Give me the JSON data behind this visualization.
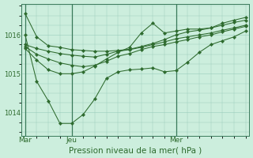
{
  "background_color": "#cceedd",
  "grid_color": "#99ccbb",
  "line_color": "#2d6a2d",
  "marker_color": "#2d6a2d",
  "xlabel": "Pression niveau de la mer( hPa )",
  "xlabel_fontsize": 7.5,
  "tick_label_color": "#2d6a2d",
  "yticks": [
    1014,
    1015,
    1016
  ],
  "ylim": [
    1013.4,
    1016.8
  ],
  "xlim": [
    -0.3,
    19.3
  ],
  "xtick_labels": [
    "Mar",
    "Jeu",
    "Mer"
  ],
  "xtick_positions": [
    0,
    4,
    13
  ],
  "vline_positions": [
    0,
    4,
    13
  ],
  "vline_color": "#3a7a5a",
  "lines": [
    [
      1016.55,
      1015.95,
      1015.72,
      1015.68,
      1015.62,
      1015.6,
      1015.58,
      1015.58,
      1015.6,
      1015.63,
      1015.7,
      1015.78,
      1015.88,
      1016.0,
      1016.08,
      1016.12,
      1016.18,
      1016.25,
      1016.32,
      1016.38
    ],
    [
      1016.0,
      1014.8,
      1014.3,
      1013.72,
      1013.72,
      1013.95,
      1014.35,
      1014.88,
      1015.05,
      1015.1,
      1015.12,
      1015.15,
      1015.05,
      1015.08,
      1015.3,
      1015.55,
      1015.75,
      1015.85,
      1015.95,
      1016.1
    ],
    [
      1015.75,
      1015.65,
      1015.58,
      1015.52,
      1015.48,
      1015.45,
      1015.43,
      1015.5,
      1015.58,
      1015.62,
      1015.68,
      1015.75,
      1015.82,
      1015.9,
      1015.95,
      1016.0,
      1016.05,
      1016.12,
      1016.18,
      1016.25
    ],
    [
      1015.7,
      1015.5,
      1015.38,
      1015.28,
      1015.22,
      1015.18,
      1015.22,
      1015.32,
      1015.45,
      1015.52,
      1015.62,
      1015.7,
      1015.75,
      1015.82,
      1015.88,
      1015.95,
      1016.0,
      1016.08,
      1016.15,
      1016.22
    ],
    [
      1015.65,
      1015.35,
      1015.1,
      1015.0,
      1015.0,
      1015.05,
      1015.2,
      1015.38,
      1015.55,
      1015.68,
      1016.05,
      1016.3,
      1016.05,
      1016.1,
      1016.15,
      1016.15,
      1016.18,
      1016.3,
      1016.38,
      1016.45
    ]
  ],
  "n_points": 20
}
